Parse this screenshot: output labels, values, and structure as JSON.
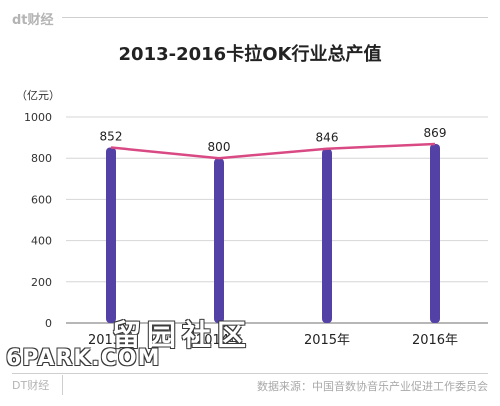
{
  "header": {
    "brand": "dt财经"
  },
  "footer": {
    "brand": "DT财经",
    "source": "数据来源：中国音数协音乐产业促进工作委员会"
  },
  "watermark": {
    "cn": "留园社区",
    "en": "6PARK.COM"
  },
  "chart_data": {
    "type": "bar",
    "title": "2013-2016卡拉OK行业总产值",
    "ylabel": "（亿元）",
    "xlabel": "",
    "categories": [
      "2013年",
      "2014年",
      "2015年",
      "2016年"
    ],
    "values": [
      852,
      800,
      846,
      869
    ],
    "data_labels": [
      "852",
      "800",
      "846",
      "869"
    ],
    "ylim": [
      0,
      1000
    ],
    "yticks": [
      0,
      200,
      400,
      600,
      800,
      1000
    ],
    "grid": true,
    "overlay_line": true,
    "colors": {
      "bar": "#5441a6",
      "line": "#d94a84",
      "grid": "#d6d6d6",
      "axis": "#8c8c8c"
    }
  }
}
